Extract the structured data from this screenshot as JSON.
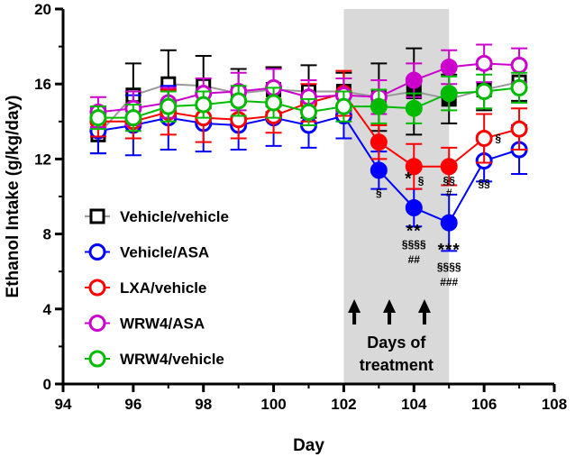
{
  "chart_data": {
    "type": "line",
    "title": "",
    "xlabel": "Day",
    "ylabel": "Ethanol Intake (g/kg/day)",
    "xlim": [
      94,
      108
    ],
    "ylim": [
      0,
      20
    ],
    "xticks": [
      94,
      96,
      98,
      100,
      102,
      104,
      106,
      108
    ],
    "yticks": [
      0,
      4,
      8,
      12,
      16,
      20
    ],
    "grid": false,
    "legend_position": "bottom-left",
    "shaded_region": {
      "x": [
        102,
        105
      ],
      "label_line1": "Days of",
      "label_line2": "treatment",
      "arrows_at": [
        102.3,
        103.3,
        104.3
      ]
    },
    "series": [
      {
        "name": "Vehicle/vehicle",
        "color": "#000000",
        "marker": "square",
        "x": [
          95,
          96,
          97,
          98,
          99,
          100,
          101,
          102,
          103,
          104,
          105,
          106,
          107
        ],
        "y": [
          13.3,
          15.4,
          16.0,
          15.9,
          15.5,
          15.7,
          15.6,
          15.6,
          15.3,
          15.6,
          15.2,
          15.7,
          16.1
        ],
        "err": [
          1.0,
          1.7,
          1.8,
          1.6,
          1.3,
          1.2,
          1.4,
          1.0,
          1.8,
          2.3,
          1.3,
          1.1,
          1.0
        ],
        "filled": [
          false,
          false,
          false,
          false,
          false,
          false,
          false,
          false,
          false,
          true,
          true,
          false,
          false
        ]
      },
      {
        "name": "Vehicle/ASA",
        "color": "#0000ff",
        "marker": "circle",
        "x": [
          95,
          96,
          97,
          98,
          99,
          100,
          101,
          102,
          103,
          104,
          105,
          106,
          107
        ],
        "y": [
          13.5,
          13.8,
          14.2,
          13.9,
          13.8,
          14.2,
          13.8,
          14.3,
          11.4,
          9.4,
          8.6,
          11.9,
          12.5
        ],
        "err": [
          1.2,
          1.6,
          1.7,
          1.5,
          1.3,
          1.5,
          1.2,
          1.2,
          1.0,
          1.0,
          1.5,
          1.1,
          1.3
        ],
        "filled": [
          false,
          false,
          false,
          false,
          false,
          false,
          false,
          false,
          true,
          true,
          true,
          false,
          false
        ]
      },
      {
        "name": "LXA/vehicle",
        "color": "#ff0000",
        "marker": "circle",
        "x": [
          95,
          96,
          97,
          98,
          99,
          100,
          101,
          102,
          103,
          104,
          105,
          106,
          107
        ],
        "y": [
          14.0,
          14.0,
          14.5,
          14.2,
          14.1,
          14.3,
          15.0,
          15.5,
          12.9,
          11.6,
          11.6,
          13.1,
          13.6
        ],
        "err": [
          0.8,
          0.9,
          1.2,
          1.3,
          1.0,
          0.9,
          1.0,
          1.2,
          0.9,
          1.2,
          1.0,
          1.3,
          1.1
        ],
        "filled": [
          false,
          false,
          false,
          false,
          false,
          false,
          false,
          false,
          true,
          true,
          true,
          false,
          false
        ]
      },
      {
        "name": "WRW4/ASA",
        "color": "#cc00cc",
        "marker": "circle",
        "x": [
          95,
          96,
          97,
          98,
          99,
          100,
          101,
          102,
          103,
          104,
          105,
          106,
          107
        ],
        "y": [
          14.5,
          14.7,
          15.0,
          15.5,
          15.6,
          15.8,
          15.3,
          15.4,
          15.3,
          16.2,
          16.9,
          17.1,
          17.0
        ],
        "err": [
          0.8,
          0.9,
          0.8,
          0.8,
          1.0,
          1.0,
          0.9,
          0.9,
          0.9,
          0.9,
          0.9,
          1.0,
          0.9
        ],
        "filled": [
          false,
          false,
          false,
          false,
          false,
          false,
          false,
          false,
          false,
          true,
          true,
          false,
          false
        ]
      },
      {
        "name": "WRW4/vehicle",
        "color": "#00bb00",
        "marker": "circle",
        "x": [
          95,
          96,
          97,
          98,
          99,
          100,
          101,
          102,
          103,
          104,
          105,
          106,
          107
        ],
        "y": [
          14.2,
          14.2,
          14.8,
          14.9,
          15.1,
          15.0,
          14.5,
          14.8,
          14.8,
          14.7,
          15.5,
          15.6,
          15.8
        ],
        "err": [
          0.6,
          0.7,
          0.8,
          0.7,
          0.8,
          0.8,
          0.7,
          0.8,
          0.9,
          0.8,
          0.9,
          0.9,
          0.8
        ],
        "filled": [
          false,
          false,
          false,
          false,
          false,
          false,
          false,
          false,
          true,
          true,
          true,
          false,
          false
        ]
      }
    ],
    "annotations": [
      {
        "text": "§",
        "x": 103,
        "y": 10.0,
        "size": "small"
      },
      {
        "text": "*",
        "x": 103.85,
        "y": 10.65,
        "size": "large"
      },
      {
        "text": "§",
        "x": 104.2,
        "y": 10.65,
        "size": "small"
      },
      {
        "text": "§§",
        "x": 105,
        "y": 10.65,
        "size": "small"
      },
      {
        "text": "#",
        "x": 105,
        "y": 10.0,
        "size": "small"
      },
      {
        "text": "**",
        "x": 104,
        "y": 7.85,
        "size": "large"
      },
      {
        "text": "§§§§",
        "x": 104,
        "y": 7.25,
        "size": "small"
      },
      {
        "text": "##",
        "x": 104,
        "y": 6.45,
        "size": "small"
      },
      {
        "text": "***",
        "x": 105,
        "y": 6.85,
        "size": "large"
      },
      {
        "text": "§§§§",
        "x": 105,
        "y": 6.05,
        "size": "small"
      },
      {
        "text": "###",
        "x": 105,
        "y": 5.25,
        "size": "small"
      },
      {
        "text": "§",
        "x": 106.4,
        "y": 12.9,
        "size": "small"
      },
      {
        "text": "§§",
        "x": 106,
        "y": 10.5,
        "size": "small"
      }
    ]
  }
}
